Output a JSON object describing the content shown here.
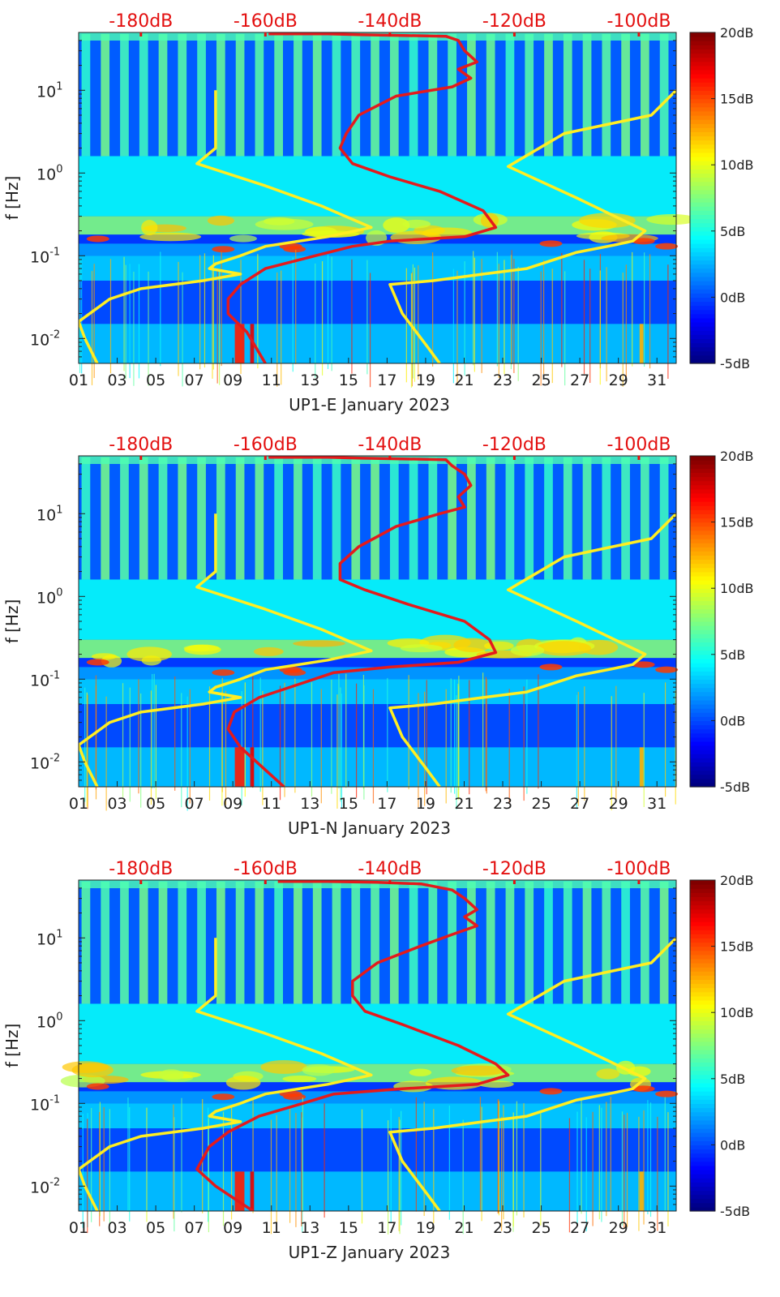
{
  "figure": {
    "type": "spectrogram-with-noise-model-overlays",
    "panel_count": 3
  },
  "colors": {
    "background": "#ffffff",
    "red_line": "#e41a1c",
    "yellow_line": "#ffee22",
    "top_label_color": "#e31010",
    "axis_color": "#222222"
  },
  "colormap": "jet",
  "chart_data": [
    {
      "type": "heatmap",
      "panel": "UP1-E",
      "xlabel": "UP1-E January 2023",
      "ylabel": "f [Hz]",
      "x_ticks": [
        "01",
        "03",
        "05",
        "07",
        "09",
        "11",
        "13",
        "15",
        "17",
        "19",
        "21",
        "23",
        "25",
        "27",
        "29",
        "31"
      ],
      "x_range_days": [
        1,
        32
      ],
      "y_scale": "log",
      "y_range_hz": [
        0.005,
        50
      ],
      "y_ticks": [
        {
          "value": 10,
          "label": "10^1"
        },
        {
          "value": 1,
          "label": "10^0"
        },
        {
          "value": 0.1,
          "label": "10^-1"
        },
        {
          "value": 0.01,
          "label": "10^-2"
        }
      ],
      "top_axis_labels": [
        "-180dB",
        "-160dB",
        "-140dB",
        "-120dB",
        "-100dB"
      ],
      "top_axis_db_range": [
        -190,
        -94
      ],
      "colorbar": {
        "labels": [
          "20dB",
          "15dB",
          "10dB",
          "5dB",
          "0dB",
          "-5dB"
        ],
        "range_db": [
          -5,
          20
        ]
      },
      "red_curve_db_vs_hz": [
        [
          -159.5,
          48
        ],
        [
          -150,
          48
        ],
        [
          -145,
          47
        ],
        [
          -138,
          46
        ],
        [
          -131,
          45
        ],
        [
          -129,
          40
        ],
        [
          -128,
          30
        ],
        [
          -126,
          22
        ],
        [
          -129,
          18
        ],
        [
          -127,
          14
        ],
        [
          -130,
          11
        ],
        [
          -139,
          8.5
        ],
        [
          -145,
          5
        ],
        [
          -147,
          3
        ],
        [
          -148,
          2
        ],
        [
          -146,
          1.3
        ],
        [
          -140,
          0.9
        ],
        [
          -132,
          0.6
        ],
        [
          -125,
          0.35
        ],
        [
          -123,
          0.22
        ],
        [
          -128,
          0.17
        ],
        [
          -140,
          0.15
        ],
        [
          -146,
          0.13
        ],
        [
          -152,
          0.1
        ],
        [
          -160,
          0.07
        ],
        [
          -164,
          0.045
        ],
        [
          -166,
          0.03
        ],
        [
          -166,
          0.02
        ],
        [
          -163,
          0.012
        ],
        [
          -160,
          0.005
        ]
      ],
      "yellow_curves_db_vs_hz": [
        [
          [
            -168,
            10
          ],
          [
            -168,
            3
          ],
          [
            -168,
            2
          ],
          [
            -171,
            1.3
          ],
          [
            -160,
            0.7
          ],
          [
            -151,
            0.4
          ],
          [
            -143,
            0.22
          ],
          [
            -150,
            0.17
          ],
          [
            -160,
            0.13
          ],
          [
            -164,
            0.1
          ],
          [
            -168,
            0.08
          ],
          [
            -169,
            0.07
          ],
          [
            -164,
            0.06
          ],
          [
            -170,
            0.05
          ],
          [
            -180,
            0.04
          ],
          [
            -185,
            0.03
          ],
          [
            -190,
            0.016
          ],
          [
            -189,
            0.01
          ],
          [
            -187,
            0.005
          ]
        ],
        [
          [
            -94,
            10
          ],
          [
            -98,
            5
          ],
          [
            -112,
            3
          ],
          [
            -121,
            1.2
          ],
          [
            -110,
            0.5
          ],
          [
            -99,
            0.2
          ],
          [
            -101,
            0.15
          ],
          [
            -105,
            0.13
          ],
          [
            -110,
            0.11
          ],
          [
            -118,
            0.07
          ],
          [
            -125,
            0.06
          ],
          [
            -133,
            0.05
          ],
          [
            -140,
            0.045
          ],
          [
            -138,
            0.02
          ],
          [
            -134,
            0.008
          ],
          [
            -132,
            0.005
          ]
        ]
      ]
    },
    {
      "type": "heatmap",
      "panel": "UP1-N",
      "xlabel": "UP1-N January 2023",
      "ylabel": "f [Hz]",
      "x_ticks": [
        "01",
        "03",
        "05",
        "07",
        "09",
        "11",
        "13",
        "15",
        "17",
        "19",
        "21",
        "23",
        "25",
        "27",
        "29",
        "31"
      ],
      "x_range_days": [
        1,
        32
      ],
      "y_scale": "log",
      "y_range_hz": [
        0.005,
        50
      ],
      "y_ticks": [
        {
          "value": 10,
          "label": "10^1"
        },
        {
          "value": 1,
          "label": "10^0"
        },
        {
          "value": 0.1,
          "label": "10^-1"
        },
        {
          "value": 0.01,
          "label": "10^-2"
        }
      ],
      "top_axis_labels": [
        "-180dB",
        "-160dB",
        "-140dB",
        "-120dB",
        "-100dB"
      ],
      "top_axis_db_range": [
        -190,
        -94
      ],
      "colorbar": {
        "labels": [
          "20dB",
          "15dB",
          "10dB",
          "5dB",
          "0dB",
          "-5dB"
        ],
        "range_db": [
          -5,
          20
        ]
      },
      "red_curve_db_vs_hz": [
        [
          -159.5,
          48
        ],
        [
          -150,
          48
        ],
        [
          -145,
          47
        ],
        [
          -138,
          46
        ],
        [
          -131,
          45
        ],
        [
          -130,
          38
        ],
        [
          -128,
          30
        ],
        [
          -127,
          22
        ],
        [
          -129,
          16
        ],
        [
          -128,
          12
        ],
        [
          -132,
          10
        ],
        [
          -139,
          7
        ],
        [
          -145,
          4
        ],
        [
          -148,
          2.5
        ],
        [
          -148,
          1.6
        ],
        [
          -144,
          1.2
        ],
        [
          -137,
          0.8
        ],
        [
          -128,
          0.5
        ],
        [
          -124,
          0.3
        ],
        [
          -123,
          0.21
        ],
        [
          -129,
          0.16
        ],
        [
          -140,
          0.14
        ],
        [
          -149,
          0.12
        ],
        [
          -154,
          0.09
        ],
        [
          -161,
          0.06
        ],
        [
          -165,
          0.04
        ],
        [
          -166,
          0.025
        ],
        [
          -164,
          0.015
        ],
        [
          -160,
          0.008
        ],
        [
          -157,
          0.005
        ]
      ],
      "yellow_curves_db_vs_hz": [
        [
          [
            -168,
            10
          ],
          [
            -168,
            3
          ],
          [
            -168,
            2
          ],
          [
            -171,
            1.3
          ],
          [
            -160,
            0.7
          ],
          [
            -151,
            0.4
          ],
          [
            -143,
            0.22
          ],
          [
            -150,
            0.17
          ],
          [
            -160,
            0.13
          ],
          [
            -164,
            0.1
          ],
          [
            -168,
            0.08
          ],
          [
            -169,
            0.07
          ],
          [
            -164,
            0.06
          ],
          [
            -170,
            0.05
          ],
          [
            -180,
            0.04
          ],
          [
            -185,
            0.03
          ],
          [
            -190,
            0.016
          ],
          [
            -189,
            0.01
          ],
          [
            -187,
            0.005
          ]
        ],
        [
          [
            -94,
            10
          ],
          [
            -98,
            5
          ],
          [
            -112,
            3
          ],
          [
            -121,
            1.2
          ],
          [
            -110,
            0.5
          ],
          [
            -99,
            0.2
          ],
          [
            -101,
            0.15
          ],
          [
            -105,
            0.13
          ],
          [
            -110,
            0.11
          ],
          [
            -118,
            0.07
          ],
          [
            -125,
            0.06
          ],
          [
            -133,
            0.05
          ],
          [
            -140,
            0.045
          ],
          [
            -138,
            0.02
          ],
          [
            -134,
            0.008
          ],
          [
            -132,
            0.005
          ]
        ]
      ]
    },
    {
      "type": "heatmap",
      "panel": "UP1-Z",
      "xlabel": "UP1-Z January 2023",
      "ylabel": "f [Hz]",
      "x_ticks": [
        "01",
        "03",
        "05",
        "07",
        "09",
        "11",
        "13",
        "15",
        "17",
        "19",
        "21",
        "23",
        "25",
        "27",
        "29",
        "31"
      ],
      "x_range_days": [
        1,
        32
      ],
      "y_scale": "log",
      "y_range_hz": [
        0.005,
        50
      ],
      "y_ticks": [
        {
          "value": 10,
          "label": "10^1"
        },
        {
          "value": 1,
          "label": "10^0"
        },
        {
          "value": 0.1,
          "label": "10^-1"
        },
        {
          "value": 0.01,
          "label": "10^-2"
        }
      ],
      "top_axis_labels": [
        "-180dB",
        "-160dB",
        "-140dB",
        "-120dB",
        "-100dB"
      ],
      "top_axis_db_range": [
        -190,
        -94
      ],
      "colorbar": {
        "labels": [
          "20dB",
          "15dB",
          "10dB",
          "5dB",
          "0dB",
          "-5dB"
        ],
        "range_db": [
          -5,
          20
        ]
      },
      "red_curve_db_vs_hz": [
        [
          -158,
          48
        ],
        [
          -150,
          48
        ],
        [
          -142,
          47
        ],
        [
          -135,
          45
        ],
        [
          -130,
          38
        ],
        [
          -128,
          30
        ],
        [
          -126,
          22
        ],
        [
          -128,
          18
        ],
        [
          -126,
          14
        ],
        [
          -130,
          11
        ],
        [
          -135,
          8
        ],
        [
          -142,
          5
        ],
        [
          -146,
          3
        ],
        [
          -146,
          2
        ],
        [
          -144,
          1.3
        ],
        [
          -138,
          0.9
        ],
        [
          -129,
          0.5
        ],
        [
          -123,
          0.3
        ],
        [
          -121,
          0.22
        ],
        [
          -126,
          0.17
        ],
        [
          -138,
          0.15
        ],
        [
          -149,
          0.13
        ],
        [
          -154,
          0.1
        ],
        [
          -161,
          0.07
        ],
        [
          -166,
          0.045
        ],
        [
          -169,
          0.03
        ],
        [
          -171,
          0.016
        ],
        [
          -168,
          0.01
        ],
        [
          -162,
          0.005
        ]
      ],
      "yellow_curves_db_vs_hz": [
        [
          [
            -168,
            10
          ],
          [
            -168,
            3
          ],
          [
            -168,
            2
          ],
          [
            -171,
            1.3
          ],
          [
            -160,
            0.7
          ],
          [
            -151,
            0.4
          ],
          [
            -143,
            0.22
          ],
          [
            -150,
            0.17
          ],
          [
            -160,
            0.13
          ],
          [
            -164,
            0.1
          ],
          [
            -168,
            0.08
          ],
          [
            -169,
            0.07
          ],
          [
            -164,
            0.06
          ],
          [
            -170,
            0.05
          ],
          [
            -180,
            0.04
          ],
          [
            -185,
            0.03
          ],
          [
            -190,
            0.016
          ],
          [
            -189,
            0.01
          ],
          [
            -187,
            0.005
          ]
        ],
        [
          [
            -94,
            10
          ],
          [
            -98,
            5
          ],
          [
            -112,
            3
          ],
          [
            -121,
            1.2
          ],
          [
            -110,
            0.5
          ],
          [
            -99,
            0.2
          ],
          [
            -101,
            0.15
          ],
          [
            -105,
            0.13
          ],
          [
            -110,
            0.11
          ],
          [
            -118,
            0.07
          ],
          [
            -125,
            0.06
          ],
          [
            -133,
            0.05
          ],
          [
            -140,
            0.045
          ],
          [
            -138,
            0.02
          ],
          [
            -134,
            0.008
          ],
          [
            -132,
            0.005
          ]
        ]
      ]
    }
  ]
}
